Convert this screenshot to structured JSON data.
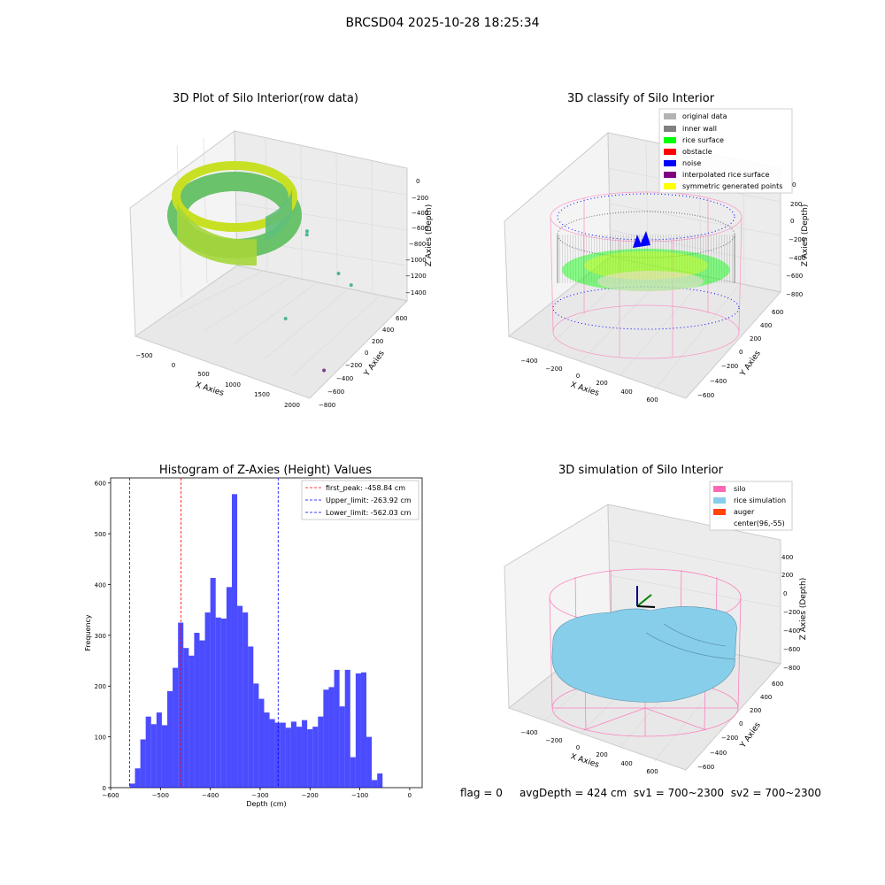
{
  "suptitle": "BRCSD04 2025-10-28 18:25:34",
  "footer": {
    "flag": "flag = 0",
    "avg_depth": "avgDepth = 424 cm",
    "sv1": "sv1 = 700~2300",
    "sv2": "sv2 = 700~2300"
  },
  "colors": {
    "raw_gradient": [
      "#3fbf8f",
      "#d8e219"
    ],
    "original_data": "#b3b3b3",
    "inner_wall": "#808080",
    "rice_surface": "#00ff00",
    "obstacle": "#ff0000",
    "noise": "#0000ff",
    "interpolated": "#800080",
    "symmetric": "#ffff00",
    "silo": "#ff69b4",
    "rice_simulation": "#87ceeb",
    "auger": "#ff4500",
    "histogram_bar": "#0000ff",
    "first_peak_line": "#ff0000",
    "limit_line": "#0000ff"
  },
  "chart_data": [
    {
      "type": "scatter",
      "title": "3D Plot of Silo Interior(row data)",
      "xlabel": "X Axies",
      "ylabel": "Y Axies",
      "zlabel": "Z Axies (Depth)",
      "x_ticks": [
        "−500",
        "0",
        "500",
        "1000",
        "1500",
        "2000"
      ],
      "y_ticks": [
        "−800",
        "−600",
        "−400",
        "−200",
        "0",
        "200",
        "400",
        "600"
      ],
      "z_ticks": [
        "0",
        "−200",
        "−400",
        "−600",
        "−800",
        "−1000",
        "−1200",
        "−1400"
      ],
      "outliers": [
        {
          "x": 1900,
          "y": 0,
          "z": -600
        },
        {
          "x": 1600,
          "y": 100,
          "z": -600
        },
        {
          "x": 900,
          "y": 300,
          "z": -450
        },
        {
          "x": 850,
          "y": 350,
          "z": -450
        },
        {
          "x": 1200,
          "y": -300,
          "z": -1000
        },
        {
          "x": 1900,
          "y": -400,
          "z": -1350
        }
      ]
    },
    {
      "type": "scatter",
      "title": "3D classify of Silo Interior",
      "xlabel": "X Axies",
      "ylabel": "Y Axies",
      "zlabel": "Z Axies (Depth)",
      "x_ticks": [
        "−400",
        "−200",
        "0",
        "200",
        "400",
        "600"
      ],
      "y_ticks": [
        "−600",
        "−400",
        "−200",
        "0",
        "200",
        "400",
        "600"
      ],
      "z_ticks": [
        "200",
        "0",
        "−200",
        "−400",
        "−600",
        "−800"
      ],
      "z_top_partial": "0",
      "legend": [
        "original data",
        "inner wall",
        "rice surface",
        "obstacle",
        "noise",
        "interpolated rice surface",
        "symmetric generated points"
      ]
    },
    {
      "type": "bar",
      "title": "Histogram of Z-Axies (Height) Values",
      "xlabel": "Depth (cm)",
      "ylabel": "Frequency",
      "xlim": [
        -600,
        25
      ],
      "ylim": [
        0,
        610
      ],
      "x_ticks": [
        -600,
        -500,
        -400,
        -300,
        -200,
        -100,
        0
      ],
      "x_tick_labels": [
        "−600",
        "−500",
        "−400",
        "−300",
        "−200",
        "−100",
        "0"
      ],
      "y_ticks": [
        0,
        100,
        200,
        300,
        400,
        500,
        600
      ],
      "y_tick_labels": [
        "0",
        "100",
        "200",
        "300",
        "400",
        "500",
        "600"
      ],
      "bin_start": -562,
      "bin_width": 10.8,
      "values": [
        8,
        38,
        95,
        140,
        125,
        148,
        123,
        190,
        236,
        325,
        275,
        260,
        305,
        290,
        345,
        413,
        335,
        333,
        395,
        578,
        358,
        345,
        278,
        205,
        175,
        148,
        135,
        128,
        128,
        118,
        130,
        120,
        133,
        115,
        120,
        140,
        193,
        198,
        232,
        160,
        232,
        60,
        225,
        227,
        100,
        15,
        28
      ],
      "vlines": [
        {
          "x": -458.84,
          "label": "first_peak: -458.84 cm",
          "style": "first_peak"
        },
        {
          "x": -263.92,
          "label": "Upper_limit: -263.92 cm",
          "style": "limit"
        },
        {
          "x": -562.03,
          "label": "Lower_limit: -562.03 cm",
          "style": "limit"
        }
      ],
      "legend_position": "upper-right"
    },
    {
      "type": "area",
      "title": "3D simulation of Silo Interior",
      "xlabel": "X Axies",
      "ylabel": "Y Axies",
      "zlabel": "Z Axies (Depth)",
      "x_ticks": [
        "−400",
        "−200",
        "0",
        "200",
        "400",
        "600"
      ],
      "y_ticks": [
        "−600",
        "−400",
        "−200",
        "0",
        "200",
        "400",
        "600"
      ],
      "z_ticks": [
        "400",
        "200",
        "0",
        "−200",
        "−400",
        "−600",
        "−800"
      ],
      "legend": [
        "silo",
        "rice simulation",
        "auger",
        "center(96,-55)"
      ]
    }
  ]
}
